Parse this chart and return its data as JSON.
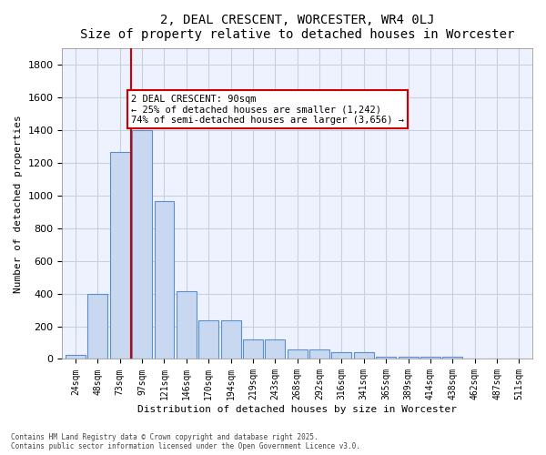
{
  "title": "2, DEAL CRESCENT, WORCESTER, WR4 0LJ",
  "subtitle": "Size of property relative to detached houses in Worcester",
  "xlabel": "Distribution of detached houses by size in Worcester",
  "ylabel": "Number of detached properties",
  "bar_color": "#c8d8f0",
  "bar_edge_color": "#5b8fc9",
  "grid_color": "#c8d0e0",
  "background_color": "#eef2ff",
  "categories": [
    "24sqm",
    "48sqm",
    "73sqm",
    "97sqm",
    "121sqm",
    "146sqm",
    "170sqm",
    "194sqm",
    "219sqm",
    "243sqm",
    "268sqm",
    "292sqm",
    "316sqm",
    "341sqm",
    "365sqm",
    "389sqm",
    "414sqm",
    "438sqm",
    "462sqm",
    "487sqm",
    "511sqm"
  ],
  "values": [
    25,
    400,
    1265,
    1400,
    965,
    415,
    235,
    235,
    120,
    120,
    60,
    60,
    40,
    40,
    15,
    15,
    15,
    15,
    0,
    0,
    0
  ],
  "vline_x": 3.5,
  "vline_color": "#cc0000",
  "annotation_text": "2 DEAL CRESCENT: 90sqm\n← 25% of detached houses are smaller (1,242)\n74% of semi-detached houses are larger (3,656) →",
  "annotation_box_color": "#ffffff",
  "annotation_box_edge": "#cc0000",
  "ylim": [
    0,
    1900
  ],
  "yticks": [
    0,
    200,
    400,
    600,
    800,
    1000,
    1200,
    1400,
    1600,
    1800
  ],
  "footer_line1": "Contains HM Land Registry data © Crown copyright and database right 2025.",
  "footer_line2": "Contains public sector information licensed under the Open Government Licence v3.0."
}
